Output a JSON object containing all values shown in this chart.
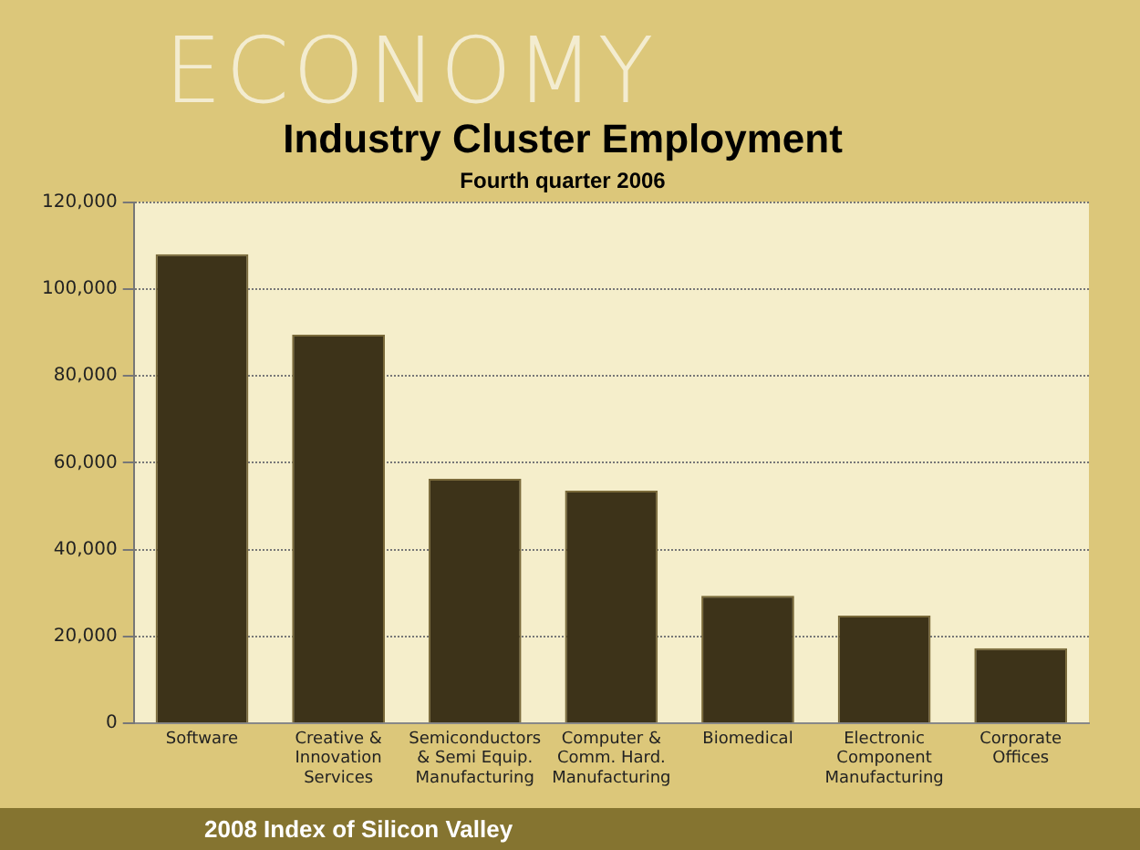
{
  "chart_data": {
    "type": "bar",
    "title": "Industry Cluster Employment",
    "subtitle": "Fourth quarter 2006",
    "categories": [
      "Software",
      "Creative &\nInnovation\nServices",
      "Semiconductors\n& Semi Equip.\nManufacturing",
      "Computer &\nComm. Hard.\nManufacturing",
      "Biomedical",
      "Electronic\nComponent\nManufacturing",
      "Corporate\nOffices"
    ],
    "values": [
      108000,
      89500,
      56300,
      53600,
      29400,
      24800,
      17300
    ],
    "color": "#3d3319",
    "ylim": [
      0,
      120000
    ],
    "yticks": [
      0,
      {
        "value": 20000,
        "label": "20,000"
      },
      {
        "value": 40000,
        "label": "40,000"
      },
      {
        "value": 60000,
        "label": "60,000"
      },
      {
        "value": 80000,
        "label": "80,000"
      },
      {
        "value": 100000,
        "label": "100,000"
      },
      {
        "value": 120000,
        "label": "120,000"
      }
    ],
    "grid": "y",
    "legend": false,
    "annotations": [
      "ECONOMY",
      "2008 Index of Silicon Valley"
    ]
  }
}
